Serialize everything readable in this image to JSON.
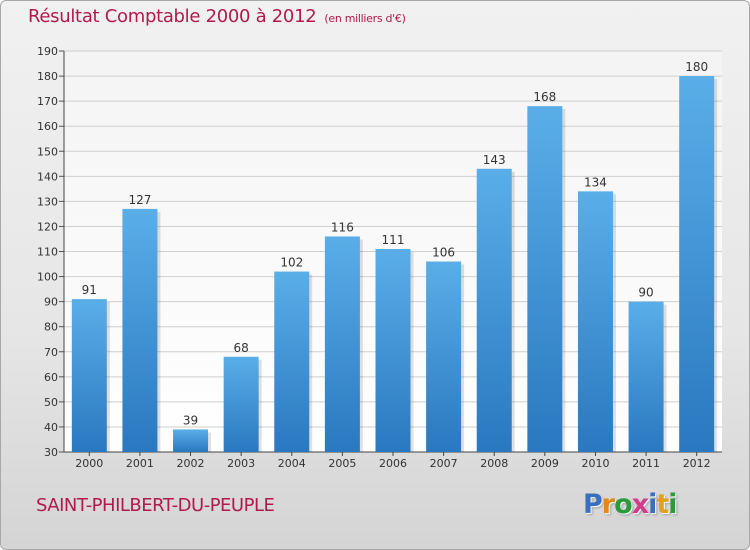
{
  "title": "Résultat Comptable 2000 à 2012",
  "unit": "(en milliers d'€)",
  "commune": "SAINT-PHILBERT-DU-PEUPLE",
  "logo": {
    "text": "Proxiti",
    "letter_colors": [
      "#3a6fbf",
      "#e08a1a",
      "#2a9a3a",
      "#d43a8a",
      "#3a6fbf",
      "#e0a21a",
      "#2a9a3a"
    ]
  },
  "colors": {
    "bar": "#3a8fd8",
    "bar_light": "#5aaee8",
    "bar_dark": "#2a78c0",
    "title": "#b3194d",
    "grid": "#cfcfcf"
  },
  "chart_data": {
    "type": "bar",
    "categories": [
      "2000",
      "2001",
      "2002",
      "2003",
      "2004",
      "2005",
      "2006",
      "2007",
      "2008",
      "2009",
      "2010",
      "2011",
      "2012"
    ],
    "values": [
      91,
      127,
      39,
      68,
      102,
      116,
      111,
      106,
      143,
      168,
      134,
      90,
      180
    ],
    "ylim": [
      30,
      190
    ],
    "yticks": [
      30,
      40,
      50,
      60,
      70,
      80,
      90,
      100,
      110,
      120,
      130,
      140,
      150,
      160,
      170,
      180,
      190
    ],
    "grid": true,
    "data_labels": true
  }
}
